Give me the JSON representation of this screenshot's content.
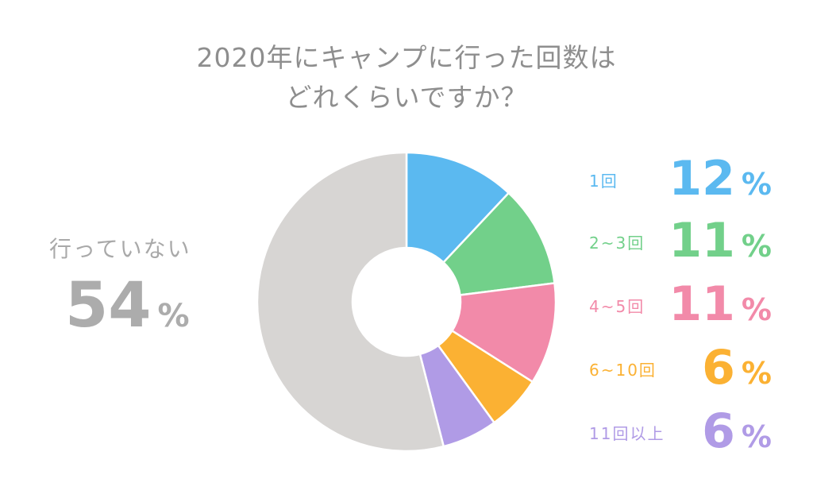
{
  "chart_data": {
    "type": "pie",
    "title": [
      "2020年にキャンプに行った回数は",
      "どれくらいですか？"
    ],
    "categories": [
      "1回",
      "2~3回",
      "4~5回",
      "6~10回",
      "11回以上",
      "行っていない"
    ],
    "values": [
      12,
      11,
      11,
      6,
      6,
      54
    ],
    "unit": "%",
    "donut": true,
    "colors": [
      "#5bb9f0",
      "#72d08a",
      "#f28aa9",
      "#fbb133",
      "#b09be6",
      "#d7d5d3"
    ],
    "legend": [
      {
        "label": "1回",
        "value": "12",
        "unit": "%"
      },
      {
        "label": "2~3回",
        "value": "11",
        "unit": "%"
      },
      {
        "label": "4~5回",
        "value": "11",
        "unit": "%"
      },
      {
        "label": "6~10回",
        "value": "6",
        "unit": "%"
      },
      {
        "label": "11回以上",
        "value": "6",
        "unit": "%"
      }
    ],
    "callout": {
      "label": "行っていない",
      "value": "54",
      "unit": "%"
    }
  }
}
